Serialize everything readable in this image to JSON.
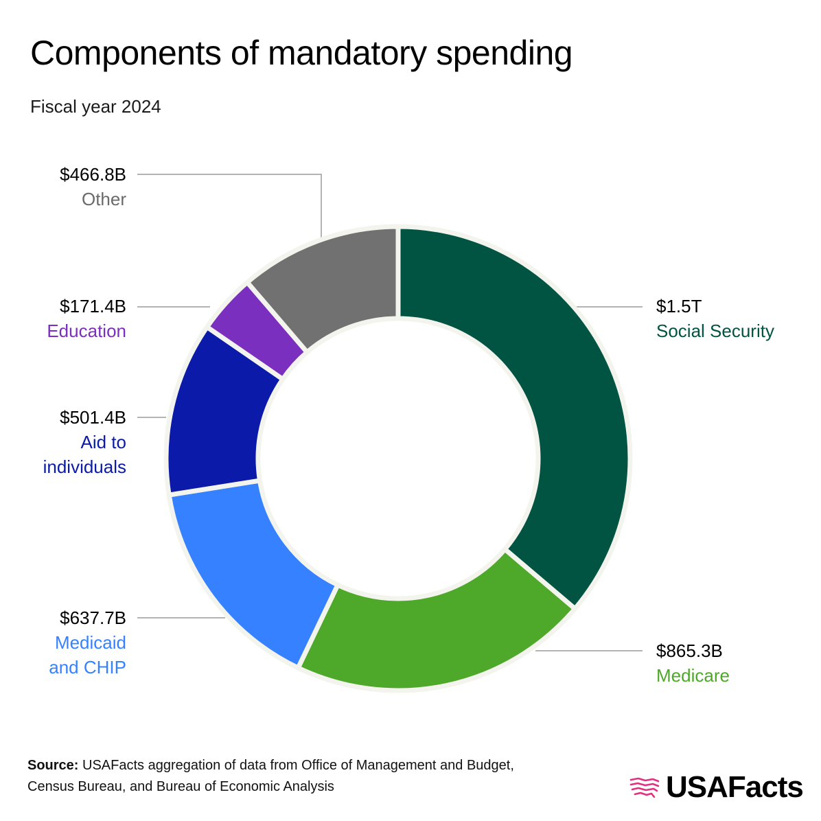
{
  "title": "Components of mandatory spending",
  "subtitle": "Fiscal year 2024",
  "chart_data": {
    "type": "pie",
    "variant": "donut",
    "title": "Components of mandatory spending",
    "subtitle": "Fiscal year 2024",
    "unit": "USD",
    "slices": [
      {
        "name": "Social Security",
        "value": 1500.0,
        "label": "$1.5T",
        "color": "#005441"
      },
      {
        "name": "Medicare",
        "value": 865.3,
        "label": "$865.3B",
        "color": "#4ea829"
      },
      {
        "name": "Medicaid\nand CHIP",
        "value": 637.7,
        "label": "$637.7B",
        "color": "#3581ff"
      },
      {
        "name": "Aid to\nindividuals",
        "value": 501.4,
        "label": "$501.4B",
        "color": "#0b1aa8"
      },
      {
        "name": "Education",
        "value": 171.4,
        "label": "$171.4B",
        "color": "#7b2fbf"
      },
      {
        "name": "Other",
        "value": 466.8,
        "label": "$466.8B",
        "color": "#717171"
      }
    ]
  },
  "source": {
    "prefix": "Source:",
    "text": " USAFacts aggregation of data from Office of Management and Budget, Census Bureau, and Bureau of Economic Analysis"
  },
  "logo": {
    "text": "USAFacts",
    "color": "#e0307f"
  }
}
